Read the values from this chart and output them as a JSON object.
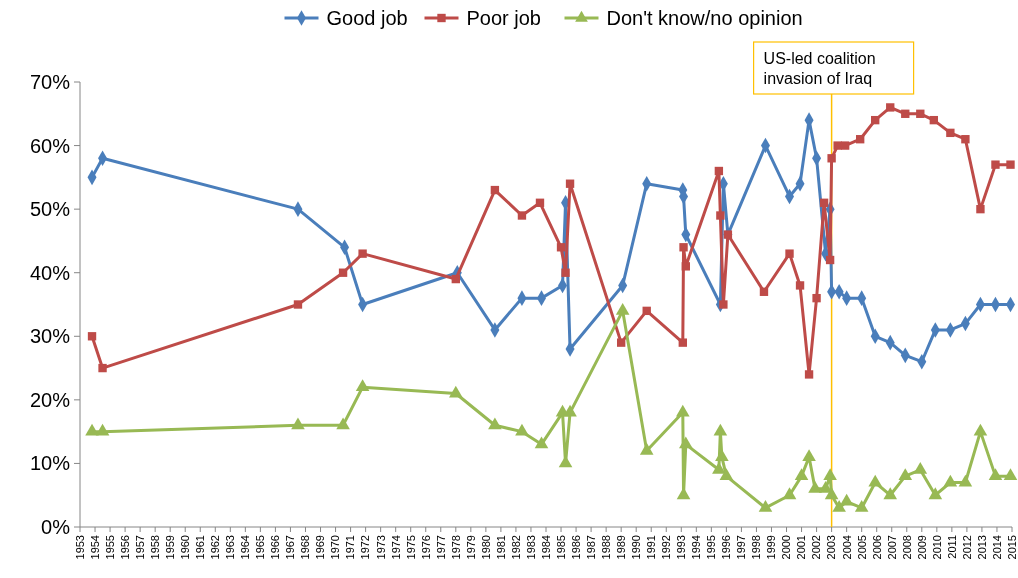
{
  "chart_data": {
    "type": "line",
    "xlim": [
      1953,
      2015
    ],
    "xticks": [
      1953,
      1954,
      1955,
      1956,
      1957,
      1958,
      1959,
      1960,
      1961,
      1962,
      1963,
      1964,
      1965,
      1966,
      1967,
      1968,
      1969,
      1970,
      1971,
      1972,
      1973,
      1974,
      1975,
      1976,
      1977,
      1978,
      1979,
      1980,
      1981,
      1982,
      1983,
      1984,
      1985,
      1986,
      1987,
      1988,
      1989,
      1990,
      1991,
      1992,
      1993,
      1994,
      1995,
      1996,
      1997,
      1998,
      1999,
      2000,
      2001,
      2002,
      2003,
      2004,
      2005,
      2006,
      2007,
      2008,
      2009,
      2010,
      2011,
      2012,
      2013,
      2014,
      2015
    ],
    "ylim": [
      0,
      70
    ],
    "yticks": [
      {
        "value": 0,
        "label": "0%"
      },
      {
        "value": 10,
        "label": "10%"
      },
      {
        "value": 20,
        "label": "20%"
      },
      {
        "value": 30,
        "label": "30%"
      },
      {
        "value": 40,
        "label": "40%"
      },
      {
        "value": 50,
        "label": "50%"
      },
      {
        "value": 60,
        "label": "60%"
      },
      {
        "value": 70,
        "label": "70%"
      }
    ],
    "grid": false,
    "legend": "top",
    "line_style": "solid",
    "series": [
      {
        "name": "Good job",
        "color": "#4a7ebb",
        "marker": "diamond",
        "x": [
          1953.8,
          1954.5,
          1967.5,
          1970.6,
          1971.8,
          1978.1,
          1980.6,
          1982.4,
          1983.7,
          1985.1,
          1985.3,
          1985.6,
          1989.1,
          1990.7,
          1993.1,
          1993.15,
          1993.3,
          1995.6,
          1995.8,
          1996.1,
          1998.6,
          2000.2,
          2000.9,
          2001.5,
          2002.0,
          2002.6,
          2002.9,
          2003.0,
          2003.5,
          2004.0,
          2005.0,
          2005.9,
          2006.9,
          2007.9,
          2009.0,
          2009.9,
          2010.9,
          2011.9,
          2012.9,
          2013.9,
          2014.9
        ],
        "values": [
          55,
          58,
          50,
          44,
          35,
          40,
          31,
          36,
          36,
          38,
          51,
          28,
          38,
          54,
          53,
          52,
          46,
          35,
          54,
          46,
          60,
          52,
          54,
          64,
          58,
          43,
          50,
          37,
          37,
          36,
          36,
          30,
          29,
          27,
          26,
          31,
          31,
          32,
          35,
          35,
          35
        ]
      },
      {
        "name": "Poor job",
        "color": "#be4b48",
        "marker": "square",
        "x": [
          1953.8,
          1954.5,
          1967.5,
          1970.5,
          1971.8,
          1978.0,
          1980.6,
          1982.4,
          1983.6,
          1985.0,
          1985.3,
          1985.6,
          1989.0,
          1990.7,
          1993.1,
          1993.15,
          1993.3,
          1995.5,
          1995.6,
          1995.8,
          1996.1,
          1998.5,
          2000.2,
          2000.9,
          2001.5,
          2002.0,
          2002.5,
          2002.9,
          2003.0,
          2003.4,
          2003.9,
          2004.9,
          2005.9,
          2006.9,
          2007.9,
          2008.9,
          2009.8,
          2010.9,
          2011.9,
          2012.9,
          2013.9,
          2014.9
        ],
        "values": [
          30,
          25,
          35,
          40,
          43,
          39,
          53,
          49,
          51,
          44,
          40,
          54,
          29,
          34,
          29,
          44,
          41,
          56,
          49,
          35,
          46,
          37,
          43,
          38,
          24,
          36,
          51,
          42,
          58,
          60,
          60,
          61,
          64,
          66,
          65,
          65,
          64,
          62,
          61,
          50,
          57,
          57
        ]
      },
      {
        "name": "Don't know/no opinion",
        "color": "#98b954",
        "marker": "triangle",
        "x": [
          1953.8,
          1954.5,
          1967.5,
          1970.5,
          1971.8,
          1978.0,
          1980.6,
          1982.4,
          1983.7,
          1985.1,
          1985.3,
          1985.6,
          1989.1,
          1990.7,
          1993.1,
          1993.15,
          1993.3,
          1995.5,
          1995.6,
          1995.7,
          1996.0,
          1998.6,
          2000.2,
          2001.0,
          2001.5,
          2001.9,
          2002.6,
          2002.9,
          2003.0,
          2003.5,
          2004.0,
          2005.0,
          2005.9,
          2006.9,
          2007.9,
          2008.9,
          2009.9,
          2010.9,
          2011.9,
          2012.9,
          2013.9,
          2014.9
        ],
        "values": [
          15,
          15,
          16,
          16,
          22,
          21,
          16,
          15,
          13,
          18,
          10,
          18,
          34,
          12,
          18,
          5,
          13,
          9,
          15,
          11,
          8,
          3,
          5,
          8,
          11,
          6,
          6,
          8,
          5,
          3,
          4,
          3,
          7,
          5,
          8,
          9,
          5,
          7,
          7,
          15,
          8,
          8
        ]
      }
    ],
    "ref_lines": [
      {
        "axis": "x",
        "value": 2003.0,
        "label": "US-led coalition invasion of Iraq",
        "color": "#ffc000"
      }
    ]
  }
}
